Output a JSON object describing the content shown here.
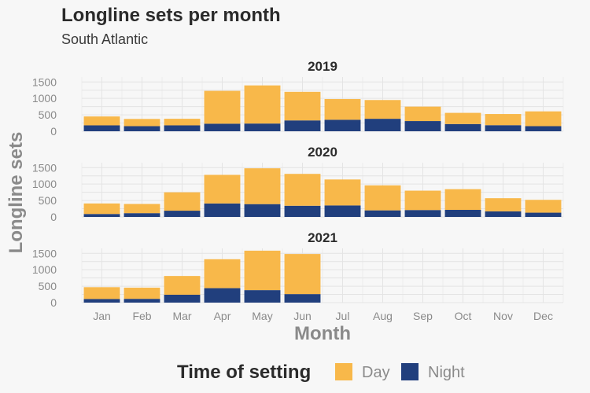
{
  "chart_data": {
    "type": "bar",
    "stacked": true,
    "title": "Longline sets per month",
    "subtitle": "South Atlantic",
    "xlabel": "Month",
    "ylabel": "Longline sets",
    "categories": [
      "Jan",
      "Feb",
      "Mar",
      "Apr",
      "May",
      "Jun",
      "Jul",
      "Aug",
      "Sep",
      "Oct",
      "Nov",
      "Dec"
    ],
    "yticks": [
      0,
      500,
      1000,
      1500
    ],
    "ylim": [
      0,
      1650
    ],
    "grid": true,
    "legend": {
      "title": "Time of setting",
      "position": "bottom",
      "entries": [
        {
          "label": "Day",
          "color": "#f8b84a"
        },
        {
          "label": "Night",
          "color": "#213f7d"
        }
      ]
    },
    "facets": [
      {
        "label": "2019",
        "series": [
          {
            "name": "Night",
            "values": [
              180,
              155,
              180,
              230,
              235,
              330,
              350,
              380,
              310,
              220,
              185,
              155
            ]
          },
          {
            "name": "Day",
            "values": [
              270,
              220,
              200,
              1000,
              1160,
              870,
              630,
              570,
              440,
              340,
              340,
              450
            ]
          }
        ]
      },
      {
        "label": "2020",
        "series": [
          {
            "name": "Night",
            "values": [
              90,
              115,
              190,
              410,
              390,
              340,
              350,
              200,
              210,
              215,
              170,
              130
            ]
          },
          {
            "name": "Day",
            "values": [
              320,
              280,
              560,
              870,
              1090,
              970,
              790,
              760,
              590,
              630,
              400,
              390
            ]
          }
        ]
      },
      {
        "label": "2021",
        "series": [
          {
            "name": "Night",
            "values": [
              110,
              115,
              240,
              440,
              380,
              260,
              null,
              null,
              null,
              null,
              null,
              null
            ]
          },
          {
            "name": "Day",
            "values": [
              360,
              340,
              570,
              880,
              1200,
              1220,
              null,
              null,
              null,
              null,
              null,
              null
            ]
          }
        ]
      }
    ]
  }
}
